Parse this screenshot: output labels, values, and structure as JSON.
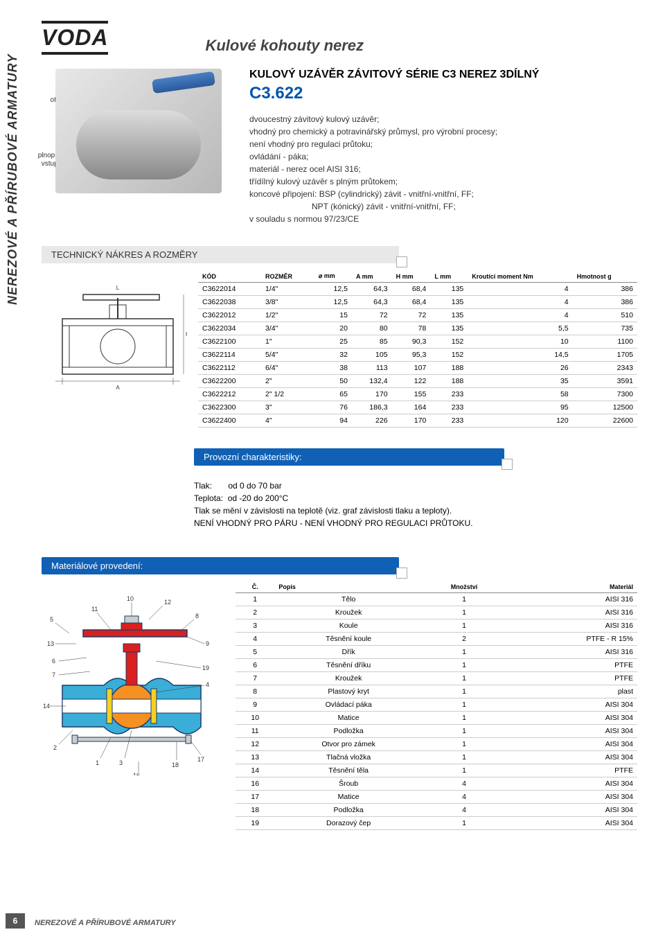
{
  "brand": "VODA",
  "page_title": "Kulové kohouty nerez",
  "side_tab": "NEREZOVÉ A PŘÍRUBOVÉ ARMATURY",
  "callout_otvor": "otvor pro zámek",
  "callout_vstup": "plnoprůtokový vstupní otvor",
  "product": {
    "name": "KULOVÝ UZÁVĚR ZÁVITOVÝ SÉRIE C3 NEREZ 3DÍLNÝ",
    "code": "C3.622"
  },
  "desc_lines": [
    "dvoucestný závitový kulový uzávěr;",
    "vhodný pro chemický a potravinářský průmysl, pro výrobní procesy;",
    "není vhodný pro regulaci průtoku;",
    "ovládání - páka;",
    "materiál - nerez ocel AISI 316;",
    "třídílný kulový uzávěr s plným průtokem;",
    "koncové připojení: BSP (cylindrický) závit - vnitřní-vnitřní, FF;",
    "                           NPT (kónický) závit - vnitřní-vnitřní, FF;",
    "v souladu s normou 97/23/CE"
  ],
  "tech_heading": "TECHNICKÝ NÁKRES A ROZMĚRY",
  "dim_table": {
    "columns": [
      "KÓD",
      "ROZMĚR",
      "⌀ mm",
      "A mm",
      "H mm",
      "L mm",
      "Kroutící moment Nm",
      "Hmotnost g"
    ],
    "rows": [
      [
        "C3622014",
        "1/4\"",
        "12,5",
        "64,3",
        "68,4",
        "135",
        "4",
        "386"
      ],
      [
        "C3622038",
        "3/8\"",
        "12,5",
        "64,3",
        "68,4",
        "135",
        "4",
        "386"
      ],
      [
        "C3622012",
        "1/2\"",
        "15",
        "72",
        "72",
        "135",
        "4",
        "510"
      ],
      [
        "C3622034",
        "3/4\"",
        "20",
        "80",
        "78",
        "135",
        "5,5",
        "735"
      ],
      [
        "C3622100",
        "1\"",
        "25",
        "85",
        "90,3",
        "152",
        "10",
        "1100"
      ],
      [
        "C3622114",
        "5/4\"",
        "32",
        "105",
        "95,3",
        "152",
        "14,5",
        "1705"
      ],
      [
        "C3622112",
        "6/4\"",
        "38",
        "113",
        "107",
        "188",
        "26",
        "2343"
      ],
      [
        "C3622200",
        "2\"",
        "50",
        "132,4",
        "122",
        "188",
        "35",
        "3591"
      ],
      [
        "C3622212",
        "2\" 1/2",
        "65",
        "170",
        "155",
        "233",
        "58",
        "7300"
      ],
      [
        "C3622300",
        "3\"",
        "76",
        "186,3",
        "164",
        "233",
        "95",
        "12500"
      ],
      [
        "C3622400",
        "4\"",
        "94",
        "226",
        "170",
        "233",
        "120",
        "22600"
      ]
    ]
  },
  "op_heading": "Provozní charakteristiky:",
  "op_lines": [
    "Tlak:       od 0 do 70 bar",
    "Teplota:  od -20 do 200°C",
    "Tlak se mění v závislosti na teplotě (viz. graf závislosti tlaku a teploty).",
    "NENÍ VHODNÝ PRO PÁRU - NENÍ VHODNÝ PRO REGULACI PRŮTOKU."
  ],
  "mat_heading": "Materiálové provedení:",
  "mat_table": {
    "columns": [
      "Č.",
      "Popis",
      "Množství",
      "Materiál"
    ],
    "rows": [
      [
        "1",
        "Tělo",
        "1",
        "AISI 316"
      ],
      [
        "2",
        "Kroužek",
        "1",
        "AISI 316"
      ],
      [
        "3",
        "Koule",
        "1",
        "AISI 316"
      ],
      [
        "4",
        "Těsnění koule",
        "2",
        "PTFE - R 15%"
      ],
      [
        "5",
        "Dřík",
        "1",
        "AISI 316"
      ],
      [
        "6",
        "Těsnění dříku",
        "1",
        "PTFE"
      ],
      [
        "7",
        "Kroužek",
        "1",
        "PTFE"
      ],
      [
        "8",
        "Plastový kryt",
        "1",
        "plast"
      ],
      [
        "9",
        "Ovládací páka",
        "1",
        "AISI 304"
      ],
      [
        "10",
        "Matice",
        "1",
        "AISI 304"
      ],
      [
        "11",
        "Podložka",
        "1",
        "AISI 304"
      ],
      [
        "12",
        "Otvor pro zámek",
        "1",
        "AISI 304"
      ],
      [
        "13",
        "Tlačná vložka",
        "1",
        "AISI 304"
      ],
      [
        "14",
        "Těsnění těla",
        "1",
        "PTFE"
      ],
      [
        "16",
        "Šroub",
        "4",
        "AISI 304"
      ],
      [
        "17",
        "Matice",
        "4",
        "AISI 304"
      ],
      [
        "18",
        "Podložka",
        "4",
        "AISI 304"
      ],
      [
        "19",
        "Dorazový čep",
        "1",
        "AISI 304"
      ]
    ]
  },
  "page_num": "6",
  "footer": "NEREZOVÉ A PŘÍRUBOVÉ ARMATURY",
  "colors": {
    "blue_accent": "#1060b5",
    "handle_blue": "#3a70b8",
    "red": "#d82020",
    "orange": "#f59022",
    "cyan": "#3aaed6",
    "yellow": "#f5d020"
  },
  "exploded_labels": [
    "1",
    "2",
    "3",
    "4",
    "5",
    "6",
    "7",
    "8",
    "9",
    "10",
    "11",
    "12",
    "13",
    "14",
    "16",
    "17",
    "18",
    "19"
  ]
}
